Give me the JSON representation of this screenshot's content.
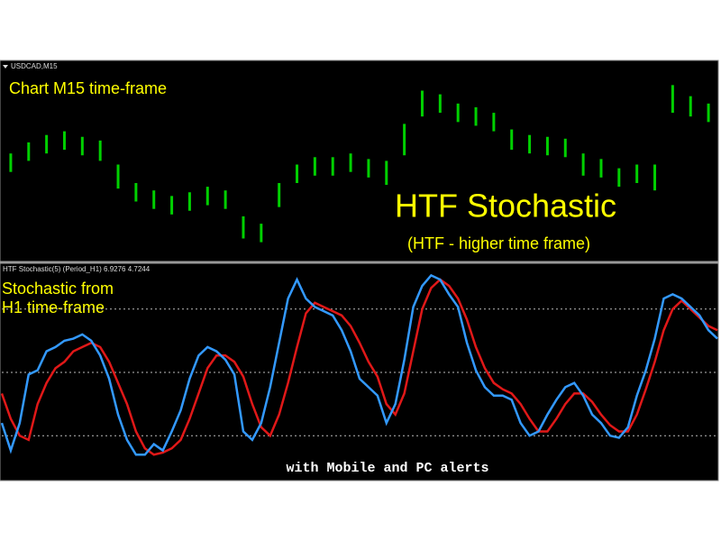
{
  "chart_data": [
    {
      "type": "candle",
      "title": "USDCAD,M15",
      "annotations": [
        "Chart M15 time-frame",
        "HTF Stochastic",
        "(HTF - higher time frame)"
      ],
      "color": "#00d000",
      "ylim": [
        0,
        100
      ],
      "highs": [
        56,
        62,
        66,
        68,
        65,
        63,
        50,
        40,
        36,
        33,
        35,
        38,
        36,
        22,
        18,
        40,
        50,
        54,
        54,
        56,
        53,
        52,
        72,
        90,
        88,
        83,
        81,
        78,
        69,
        66,
        65,
        64,
        56,
        53,
        48,
        50,
        50,
        93,
        87,
        83
      ],
      "lows": [
        46,
        52,
        56,
        58,
        55,
        52,
        37,
        30,
        26,
        23,
        25,
        28,
        26,
        10,
        8,
        27,
        40,
        44,
        44,
        46,
        43,
        39,
        55,
        76,
        78,
        73,
        71,
        68,
        58,
        56,
        55,
        54,
        44,
        43,
        38,
        40,
        36,
        78,
        76,
        73
      ]
    },
    {
      "type": "line",
      "title": "HTF Stochastic(5) (Period_H1) 6.9276 4.7244",
      "annotations": [
        "Stochastic from",
        "H1 time-frame",
        "with Mobile and PC alerts"
      ],
      "ylim": [
        0,
        100
      ],
      "levels": [
        20,
        50,
        80
      ],
      "series": [
        {
          "color": "#3399ff",
          "values": [
            26,
            13,
            26,
            49,
            51,
            60,
            62,
            65,
            66,
            68,
            65,
            58,
            47,
            30,
            18,
            11,
            11,
            16,
            13,
            22,
            32,
            47,
            58,
            62,
            60,
            56,
            49,
            22,
            18,
            26,
            43,
            64,
            85,
            94,
            85,
            81,
            79,
            77,
            70,
            60,
            47,
            43,
            39,
            26,
            35,
            56,
            81,
            91,
            96,
            94,
            87,
            81,
            64,
            51,
            43,
            39,
            39,
            37,
            26,
            20,
            22,
            30,
            37,
            43,
            45,
            39,
            30,
            26,
            20,
            19,
            24,
            39,
            51,
            66,
            85,
            87,
            85,
            81,
            77,
            70,
            66
          ]
        },
        {
          "color": "#e01818",
          "values": [
            40,
            28,
            20,
            18,
            35,
            45,
            52,
            55,
            60,
            62,
            64,
            62,
            55,
            45,
            35,
            22,
            14,
            11,
            12,
            14,
            18,
            28,
            40,
            52,
            58,
            58,
            55,
            48,
            35,
            24,
            20,
            30,
            45,
            62,
            78,
            83,
            81,
            79,
            77,
            72,
            64,
            55,
            48,
            35,
            30,
            40,
            60,
            80,
            90,
            94,
            91,
            85,
            75,
            62,
            52,
            45,
            42,
            40,
            35,
            28,
            22,
            22,
            28,
            35,
            40,
            40,
            36,
            30,
            25,
            22,
            22,
            30,
            42,
            55,
            70,
            80,
            84,
            80,
            76,
            72,
            70
          ]
        }
      ]
    }
  ]
}
